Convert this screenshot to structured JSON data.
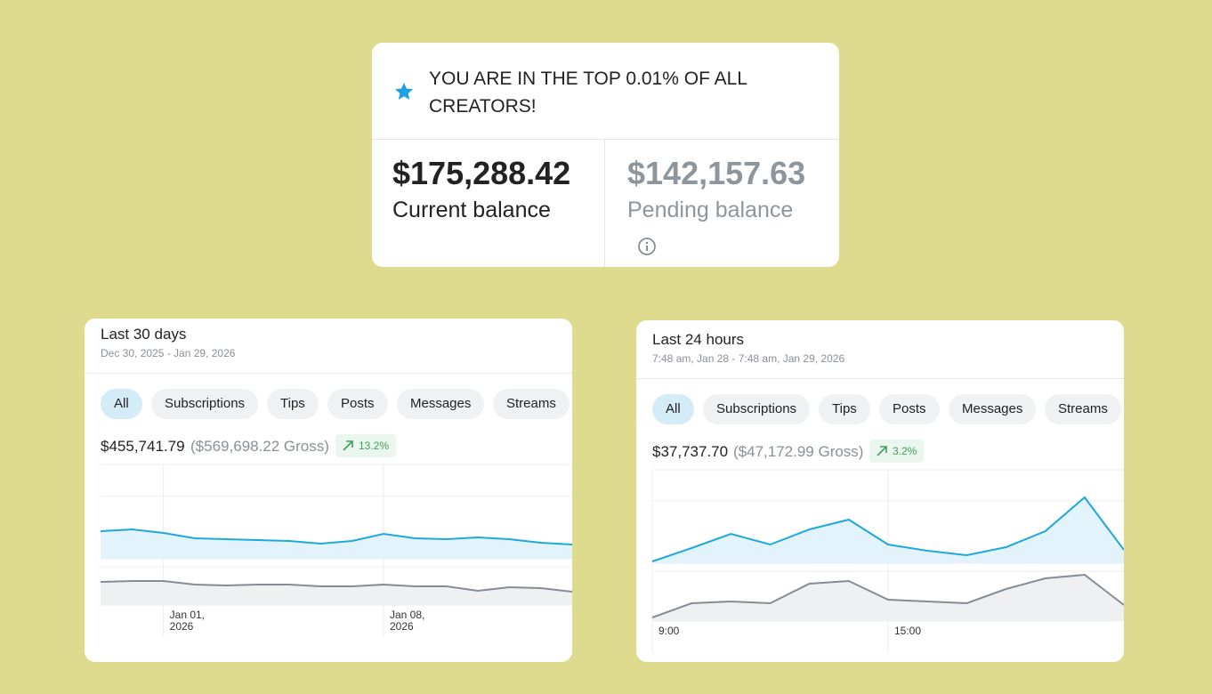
{
  "banner": {
    "title": "YOU ARE IN THE TOP 0.01% OF ALL CREATORS!",
    "current_balance": {
      "amount": "$175,288.42",
      "label": "Current balance"
    },
    "pending_balance": {
      "amount": "$142,157.63",
      "label": "Pending balance"
    }
  },
  "cards": [
    {
      "title": "Last 30 days",
      "date_range": "Dec 30, 2025 - Jan 29, 2026",
      "tabs": [
        "All",
        "Subscriptions",
        "Tips",
        "Posts",
        "Messages",
        "Streams"
      ],
      "net": "$455,741.79",
      "gross": "($569,698.22 Gross)",
      "change": "13.2%",
      "chart": {
        "type": "line",
        "categories": [
          null,
          null,
          "Jan 01, 2026",
          null,
          null,
          null,
          null,
          null,
          null,
          "Jan 08, 2026",
          null,
          null,
          null,
          null,
          null,
          null
        ],
        "series": [
          {
            "color": "#1fa8dc",
            "ylim": [
              0,
              106
            ],
            "values": [
              31,
              33,
              29,
              23,
              22,
              21,
              20,
              17,
              20,
              28,
              23,
              22,
              24,
              22,
              18,
              16
            ]
          },
          {
            "color": "#858c94",
            "ylim": [
              0,
              43
            ],
            "values": [
              26,
              27,
              27,
              23,
              22,
              23,
              23,
              21,
              21,
              23,
              21,
              21,
              16,
              20,
              19,
              15
            ]
          }
        ]
      }
    },
    {
      "title": "Last 24 hours",
      "date_range": "7:48 am, Jan 28 - 7:48 am, Jan 29, 2026",
      "tabs": [
        "All",
        "Subscriptions",
        "Tips",
        "Posts",
        "Messages",
        "Streams"
      ],
      "net": "$37,737.70",
      "gross": "($47,172.99 Gross)",
      "change": "3.2%",
      "chart": {
        "type": "line",
        "categories": [
          "9:00",
          null,
          null,
          null,
          null,
          null,
          "15:00",
          null,
          null,
          null,
          null,
          null,
          null
        ],
        "series": [
          {
            "color": "#1fa8dc",
            "ylim": [
              0,
              105
            ],
            "values": [
              2,
              17,
              33,
              21,
              38,
              49,
              21,
              14,
              9,
              18,
              36,
              74,
              15
            ]
          },
          {
            "color": "#858c94",
            "ylim": [
              0,
              56
            ],
            "values": [
              4,
              20,
              22,
              20,
              42,
              45,
              24,
              22,
              20,
              36,
              48,
              52,
              18
            ]
          }
        ]
      }
    }
  ]
}
